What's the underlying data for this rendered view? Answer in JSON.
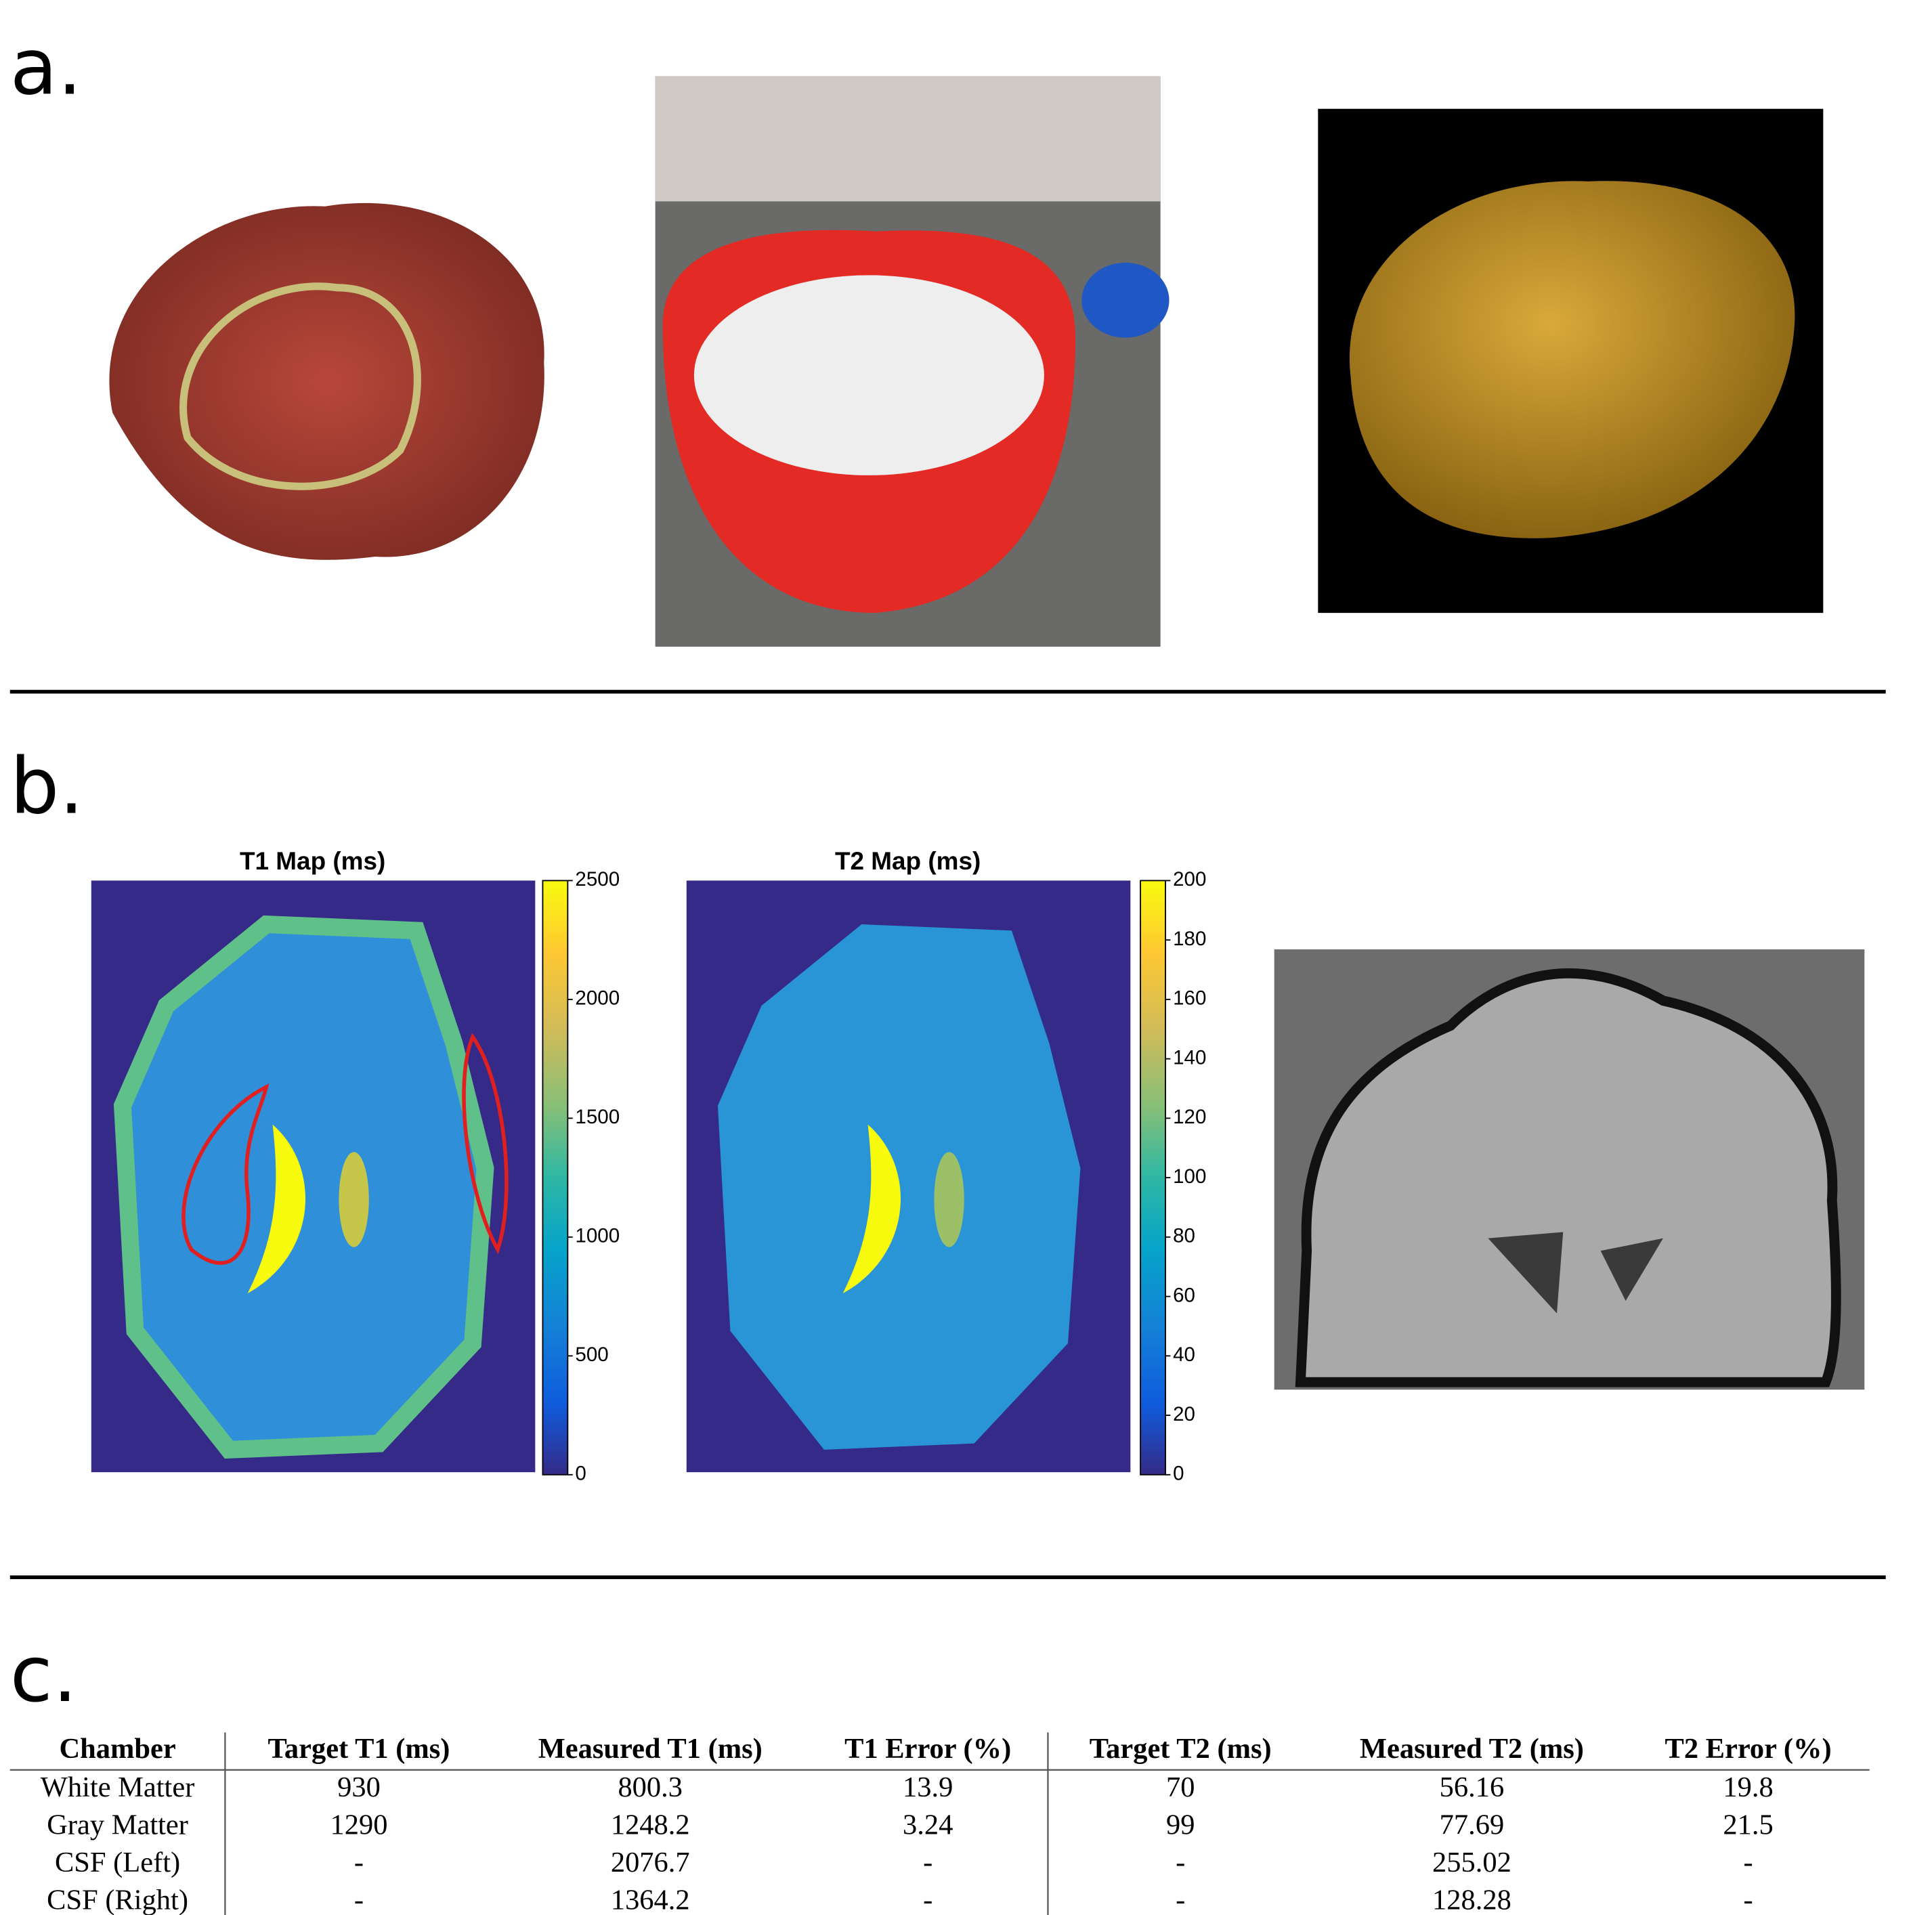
{
  "panel_a": {
    "label": "a."
  },
  "panel_b": {
    "label": "b.",
    "maps": [
      {
        "title": "T1 Map (ms)",
        "colorbar": {
          "ylim": [
            0,
            2500
          ],
          "yticks": [
            0,
            500,
            1000,
            1500,
            2000,
            2500
          ]
        }
      },
      {
        "title": "T2 Map (ms)",
        "colorbar": {
          "ylim": [
            0,
            200
          ],
          "yticks": [
            0,
            20,
            40,
            60,
            80,
            100,
            120,
            140,
            160,
            180,
            200
          ]
        }
      }
    ]
  },
  "panel_c": {
    "label": "c.",
    "table": {
      "header": [
        "Chamber",
        "Target T1 (ms)",
        "Measured T1 (ms)",
        "T1 Error (%)",
        "Target T2 (ms)",
        "Measured T2 (ms)",
        "T2 Error (%)"
      ],
      "rows": [
        [
          "White Matter",
          "930",
          "800.3",
          "13.9",
          "70",
          "56.16",
          "19.8"
        ],
        [
          "Gray Matter",
          "1290",
          "1248.2",
          "3.24",
          "99",
          "77.69",
          "21.5"
        ],
        [
          "CSF (Left)",
          "-",
          "2076.7",
          "-",
          "-",
          "255.02",
          "-"
        ],
        [
          "CSF (Right)",
          "-",
          "1364.2",
          "-",
          "-",
          "128.28",
          "-"
        ]
      ]
    }
  }
}
